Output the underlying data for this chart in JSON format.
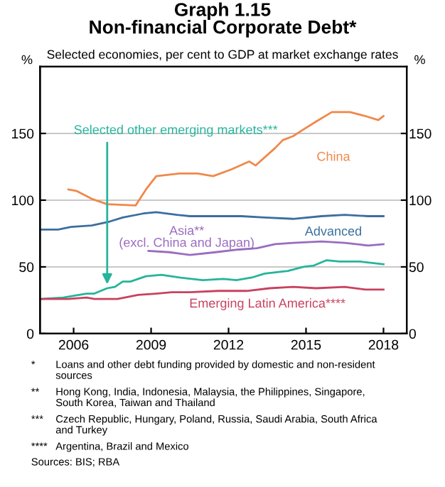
{
  "chart_data": {
    "type": "line",
    "title": "Graph 1.15\nNon-financial Corporate Debt*",
    "subtitle": "Selected economies, per cent to GDP at market exchange rates",
    "ylabel": "%",
    "y2label": "%",
    "xlim": [
      2004.7,
      2018.9
    ],
    "xticks": [
      2006,
      2009,
      2012,
      2015,
      2018
    ],
    "ylim": [
      0,
      200
    ],
    "yticks": [
      0,
      50,
      100,
      150
    ],
    "y2lim": [
      0,
      200
    ],
    "y2ticks": [
      0,
      50,
      100,
      150
    ],
    "grid": "y",
    "series": [
      {
        "name": "China",
        "color": "#f0884a",
        "x": [
          2005.8,
          2006.1,
          2006.7,
          2007.3,
          2008.4,
          2008.8,
          2009.2,
          2010.1,
          2010.8,
          2011.4,
          2012.1,
          2012.8,
          2013.05,
          2013.8,
          2014.1,
          2014.5,
          2014.9,
          2015.4,
          2016.0,
          2016.7,
          2017.3,
          2017.8,
          2018.0
        ],
        "values": [
          108,
          107,
          101,
          97,
          96,
          108,
          118,
          120,
          120,
          118,
          123,
          129,
          126,
          139,
          145,
          148,
          153,
          159,
          166,
          166,
          163,
          160,
          163
        ]
      },
      {
        "name": "Advanced",
        "color": "#3b6f9e",
        "x": [
          2004.75,
          2005.4,
          2005.9,
          2006.7,
          2007.4,
          2007.9,
          2008.7,
          2009.2,
          2010.0,
          2010.5,
          2011.6,
          2012.5,
          2013.4,
          2014.5,
          2015.6,
          2016.5,
          2017.4,
          2018.0
        ],
        "values": [
          78,
          78,
          80,
          81,
          84,
          87,
          90,
          91,
          89,
          88,
          88,
          88,
          87,
          86,
          88,
          89,
          88,
          88
        ]
      },
      {
        "name": "Asia**\n(excl. China and Japan)",
        "color": "#9a6cc0",
        "x": [
          2008.9,
          2009.7,
          2010.5,
          2011.5,
          2012.4,
          2013.1,
          2013.8,
          2014.5,
          2015.6,
          2016.5,
          2017.4,
          2018.0
        ],
        "values": [
          62,
          61,
          59,
          61,
          63,
          64,
          67,
          68,
          69,
          68,
          66,
          67
        ]
      },
      {
        "name": "Selected other emerging markets***",
        "color": "#25b59a",
        "x": [
          2004.75,
          2005.6,
          2006.5,
          2006.8,
          2007.3,
          2007.6,
          2007.9,
          2008.2,
          2008.8,
          2009.4,
          2010.1,
          2011.0,
          2011.8,
          2012.3,
          2012.9,
          2013.4,
          2014.3,
          2014.9,
          2015.3,
          2015.8,
          2016.3,
          2017.1,
          2018.0
        ],
        "values": [
          26,
          27,
          30,
          30,
          34,
          35,
          39,
          39,
          43,
          44,
          42,
          40,
          41,
          40,
          42,
          45,
          47,
          50,
          51,
          55,
          54,
          54,
          52
        ]
      },
      {
        "name": "Emerging Latin America****",
        "color": "#c8425f",
        "x": [
          2004.75,
          2005.8,
          2006.5,
          2006.8,
          2007.2,
          2007.7,
          2008.5,
          2009.2,
          2009.8,
          2010.5,
          2011.6,
          2012.7,
          2013.6,
          2014.5,
          2015.4,
          2016.5,
          2017.3,
          2018.0
        ],
        "values": [
          26,
          26,
          27,
          26,
          26,
          26,
          29,
          30,
          31,
          31,
          32,
          32,
          34,
          35,
          34,
          35,
          33,
          33
        ]
      }
    ],
    "annotations": [
      "* Loans and other debt funding provided by domestic and non-resident\nsources",
      "** Hong Kong, India, Indonesia, Malaysia, the Philippines, Singapore,\nSouth Korea, Taiwan and Thailand",
      "*** Czech Republic, Hungary, Poland, Russia, Saudi Arabia, South Africa\nand Turkey",
      "**** Argentina, Brazil and Mexico",
      "Sources: BIS; RBA"
    ]
  }
}
